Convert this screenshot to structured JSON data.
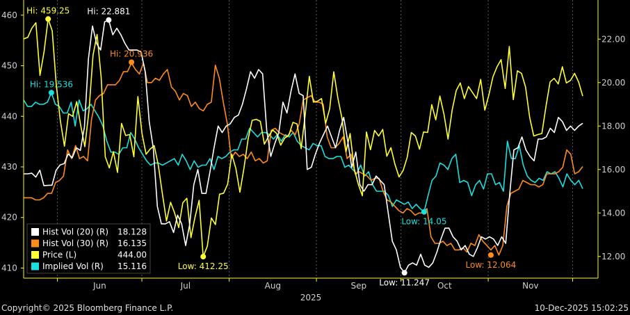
{
  "chart_data": {
    "type": "line",
    "x_axis": {
      "month_labels": [
        "Jun",
        "Jul",
        "Aug",
        "Sep",
        "Oct",
        "Nov"
      ],
      "year_label": "2025",
      "range": [
        "2025-05-20",
        "2025-12-10"
      ]
    },
    "y_left": {
      "ticks": [
        410,
        420,
        430,
        440,
        450,
        460
      ],
      "range": [
        408,
        463
      ]
    },
    "y_right": {
      "ticks": [
        "12.00",
        "14.00",
        "16.00",
        "18.00",
        "20.00",
        "22.00"
      ],
      "range": [
        11.0,
        23.8
      ]
    },
    "grid": "vertical dashed at month starts",
    "colors": {
      "background": "#000000",
      "axis": "#ffff00",
      "hv20": "#ffffff",
      "hv30": "#ff8c1a",
      "price": "#ffff33",
      "iv": "#19e0e0"
    },
    "series": [
      {
        "key": "price",
        "name": "Price (L)",
        "last": "444.00",
        "axis": "left",
        "values": [
          455.3,
          455.6,
          457.4,
          458.5,
          448.1,
          452.7,
          459.25,
          456.9,
          446.3,
          439.1,
          434.1,
          440.5,
          440.0,
          442.9,
          438.1,
          434.0,
          441.0,
          452.1,
          456.2,
          447.7,
          432.0,
          429.8,
          433.0,
          428.9,
          438.6,
          436.2,
          436.4,
          432.0,
          443.9,
          436.6,
          432.5,
          433.5,
          434.2,
          430.3,
          424.7,
          419.3,
          423.0,
          420.9,
          418.0,
          422.9,
          423.8,
          416.0,
          420.1,
          423.4,
          412.25,
          414.3,
          419.9,
          418.6,
          424.6,
          424.8,
          426.6,
          432.5,
          429.7,
          425.0,
          429.8,
          435.5,
          439.2,
          439.4,
          439.0,
          434.5,
          436.0,
          437.3,
          436.6,
          434.3,
          435.7,
          436.3,
          438.8,
          438.5,
          433.6,
          440.3,
          447.9,
          442.8,
          443.0,
          443.5,
          438.6,
          441.5,
          448.8,
          443.6,
          439.6,
          433.0,
          436.6,
          429.6,
          426.6,
          424.3,
          436.9,
          433.4,
          437.2,
          436.1,
          437.4,
          432.1,
          433.8,
          430.5,
          428.0,
          429.3,
          431.9,
          436.8,
          436.1,
          433.5,
          436.9,
          436.8,
          442.3,
          439.3,
          444.0,
          440.4,
          435.5,
          441.2,
          445.1,
          446.6,
          443.5,
          445.9,
          444.7,
          443.5,
          447.3,
          441.2,
          444.2,
          447.8,
          449.8,
          451.2,
          445.5,
          453.8,
          443.3,
          449.0,
          448.5,
          445.8,
          439.8,
          436.1,
          436.4,
          436.6,
          442.0,
          446.8,
          447.5,
          446.4,
          449.8,
          446.6,
          447.1,
          448.5,
          446.8,
          444.0
        ]
      },
      {
        "key": "hv20",
        "name": "Hist Vol (20) (R)",
        "last": "18.128",
        "axis": "right",
        "values": [
          15.8,
          15.8,
          15.83,
          15.65,
          15.97,
          15.26,
          15.27,
          15.28,
          15.96,
          16.21,
          16.27,
          16.72,
          16.54,
          17.0,
          16.88,
          17.95,
          21.1,
          22.6,
          21.8,
          21.5,
          22.8,
          22.88,
          22.2,
          22.5,
          22.2,
          21.8,
          21.5,
          21.5,
          21.5,
          21.4,
          20.5,
          18.2,
          17.0,
          14.3,
          13.5,
          13.5,
          13.6,
          13.1,
          13.9,
          13.5,
          12.5,
          13.5,
          15.3,
          16.0,
          14.9,
          14.9,
          15.9,
          17.0,
          18.0,
          17.7,
          18.0,
          18.1,
          18.4,
          18.5,
          19.0,
          19.7,
          20.5,
          20.2,
          20.6,
          20.4,
          17.8,
          16.6,
          17.2,
          17.7,
          19.1,
          18.6,
          19.6,
          20.4,
          19.5,
          19.4,
          16.0,
          16.1,
          16.7,
          17.2,
          17.6,
          18.0,
          17.5,
          17.0,
          17.8,
          18.4,
          17.3,
          16.1,
          16.8,
          15.3,
          15.0,
          15.3,
          15.3,
          15.7,
          15.5,
          15.3,
          14.0,
          12.7,
          12.3,
          11.5,
          11.25,
          11.6,
          11.7,
          11.6,
          12.1,
          11.6,
          11.5,
          11.7,
          12.2,
          12.8,
          13.3,
          13.3,
          12.9,
          12.7,
          12.3,
          12.5,
          12.1,
          12.0,
          12.4,
          12.9,
          12.8,
          12.9,
          12.8,
          12.5,
          12.9,
          12.6,
          14.9,
          16.9,
          17.0,
          17.5,
          16.9,
          16.6,
          16.4,
          17.4,
          17.4,
          17.5,
          17.9,
          17.7,
          18.4,
          18.2,
          17.8,
          18.0,
          17.8,
          18.0,
          18.128
        ]
      },
      {
        "key": "hv30",
        "name": "Hist Vol (30) (R)",
        "last": "16.135",
        "axis": "right",
        "values": [
          14.7,
          14.7,
          14.7,
          14.6,
          14.6,
          14.7,
          14.9,
          14.9,
          15.4,
          15.5,
          15.7,
          16.9,
          16.5,
          17.1,
          16.5,
          16.6,
          16.4,
          18.3,
          19.2,
          19.4,
          19.5,
          19.9,
          19.9,
          19.9,
          20.1,
          20.5,
          20.5,
          20.9,
          20.6,
          20.4,
          20.9,
          20.0,
          20.0,
          20.2,
          20.1,
          20.4,
          20.6,
          19.8,
          19.6,
          19.2,
          19.5,
          19.4,
          18.9,
          19.1,
          18.8,
          18.7,
          19.0,
          19.1,
          20.8,
          20.2,
          19.1,
          18.1,
          16.5,
          16.8,
          16.6,
          16.7,
          16.5,
          16.8,
          16.4,
          16.5,
          16.3,
          16.4,
          17.8,
          17.9,
          17.7,
          17.6,
          17.5,
          17.8,
          17.6,
          18.1,
          19.2,
          19.3,
          19.4,
          19.1,
          19.1,
          19.0,
          17.5,
          17.0,
          17.0,
          17.2,
          17.5,
          16.5,
          16.7,
          15.8,
          15.9,
          15.8,
          15.7,
          15.5,
          15.6,
          15.6,
          15.0,
          14.6,
          14.5,
          14.3,
          14.1,
          14.0,
          14.2,
          14.1,
          13.9,
          14.0,
          14.0,
          14.2,
          12.9,
          12.6,
          12.6,
          12.7,
          12.5,
          12.6,
          12.3,
          12.3,
          12.4,
          12.2,
          12.6,
          12.5,
          13.0,
          12.7,
          12.5,
          12.3,
          12.5,
          12.064,
          12.5,
          14.3,
          14.9,
          15.0,
          15.1,
          15.5,
          15.4,
          15.3,
          15.3,
          15.2,
          15.3,
          15.8,
          15.8,
          15.8,
          15.9,
          16.1,
          16.9,
          16.7,
          15.8,
          15.9,
          16.135
        ]
      },
      {
        "key": "iv",
        "name": "Implied Vol (R)",
        "last": "15.116",
        "axis": "right",
        "values": [
          19.2,
          18.9,
          18.9,
          19.1,
          19.0,
          19.0,
          19.1,
          19.536,
          19.0,
          18.9,
          18.6,
          18.6,
          19.1,
          18.0,
          19.2,
          18.7,
          18.8,
          19.0,
          18.7,
          18.4,
          18.0,
          17.3,
          16.8,
          16.8,
          16.7,
          17.0,
          17.0,
          17.7,
          17.4,
          17.0,
          16.7,
          16.4,
          16.2,
          16.3,
          16.3,
          16.2,
          16.3,
          16.4,
          16.5,
          16.2,
          16.7,
          16.4,
          16.0,
          16.4,
          16.1,
          16.2,
          16.2,
          16.5,
          16.0,
          16.6,
          16.5,
          16.6,
          16.8,
          16.9,
          16.9,
          17.4,
          17.4,
          17.9,
          17.7,
          17.5,
          17.7,
          17.7,
          17.6,
          17.4,
          17.6,
          17.3,
          17.6,
          17.5,
          17.7,
          17.3,
          17.1,
          17.0,
          16.9,
          17.2,
          17.1,
          17.1,
          16.6,
          16.5,
          16.5,
          16.6,
          16.6,
          16.1,
          16.2,
          16.0,
          15.8,
          16.2,
          15.7,
          15.9,
          15.3,
          15.0,
          15.0,
          15.0,
          14.8,
          14.3,
          14.6,
          14.5,
          14.4,
          14.5,
          14.2,
          14.4,
          14.2,
          14.05,
          14.8,
          15.5,
          15.7,
          16.3,
          16.2,
          16.0,
          16.5,
          16.7,
          15.4,
          15.5,
          15.4,
          14.8,
          15.3,
          15.5,
          15.1,
          15.8,
          15.8,
          15.3,
          15.4,
          15.0,
          17.3,
          16.5,
          16.5,
          17.1,
          16.2,
          15.7,
          15.5,
          15.4,
          15.6,
          15.5,
          15.9,
          15.8,
          15.9,
          15.6,
          15.2,
          15.8,
          15.5,
          15.3,
          15.5,
          15.116
        ]
      }
    ],
    "annotations": [
      {
        "series": "price",
        "index": 6,
        "label": "Hi: 459.25",
        "value": 459.25
      },
      {
        "series": "price",
        "index": 44,
        "label": "Low: 412.25",
        "value": 412.25
      },
      {
        "series": "hv20",
        "index": 21,
        "label": "Hi: 22.881",
        "value": 22.881
      },
      {
        "series": "hv20",
        "index": 94,
        "label": "Low: 11.247",
        "value": 11.247
      },
      {
        "series": "hv30",
        "index": 27,
        "label": "Hi: 20.936",
        "value": 20.936
      },
      {
        "series": "hv30",
        "index": 117,
        "label": "Low: 12.064",
        "value": 12.064
      },
      {
        "series": "iv",
        "index": 7,
        "label": "Hi: 19.536",
        "value": 19.536
      },
      {
        "series": "iv",
        "index": 101,
        "label": "Low: 14.05",
        "value": 14.05
      }
    ],
    "legend_position": "bottom-left"
  },
  "footer": {
    "copyright": "Copyright© 2025 Bloomberg Finance L.P.",
    "timestamp": "10-Dec-2025 15:02:25"
  }
}
